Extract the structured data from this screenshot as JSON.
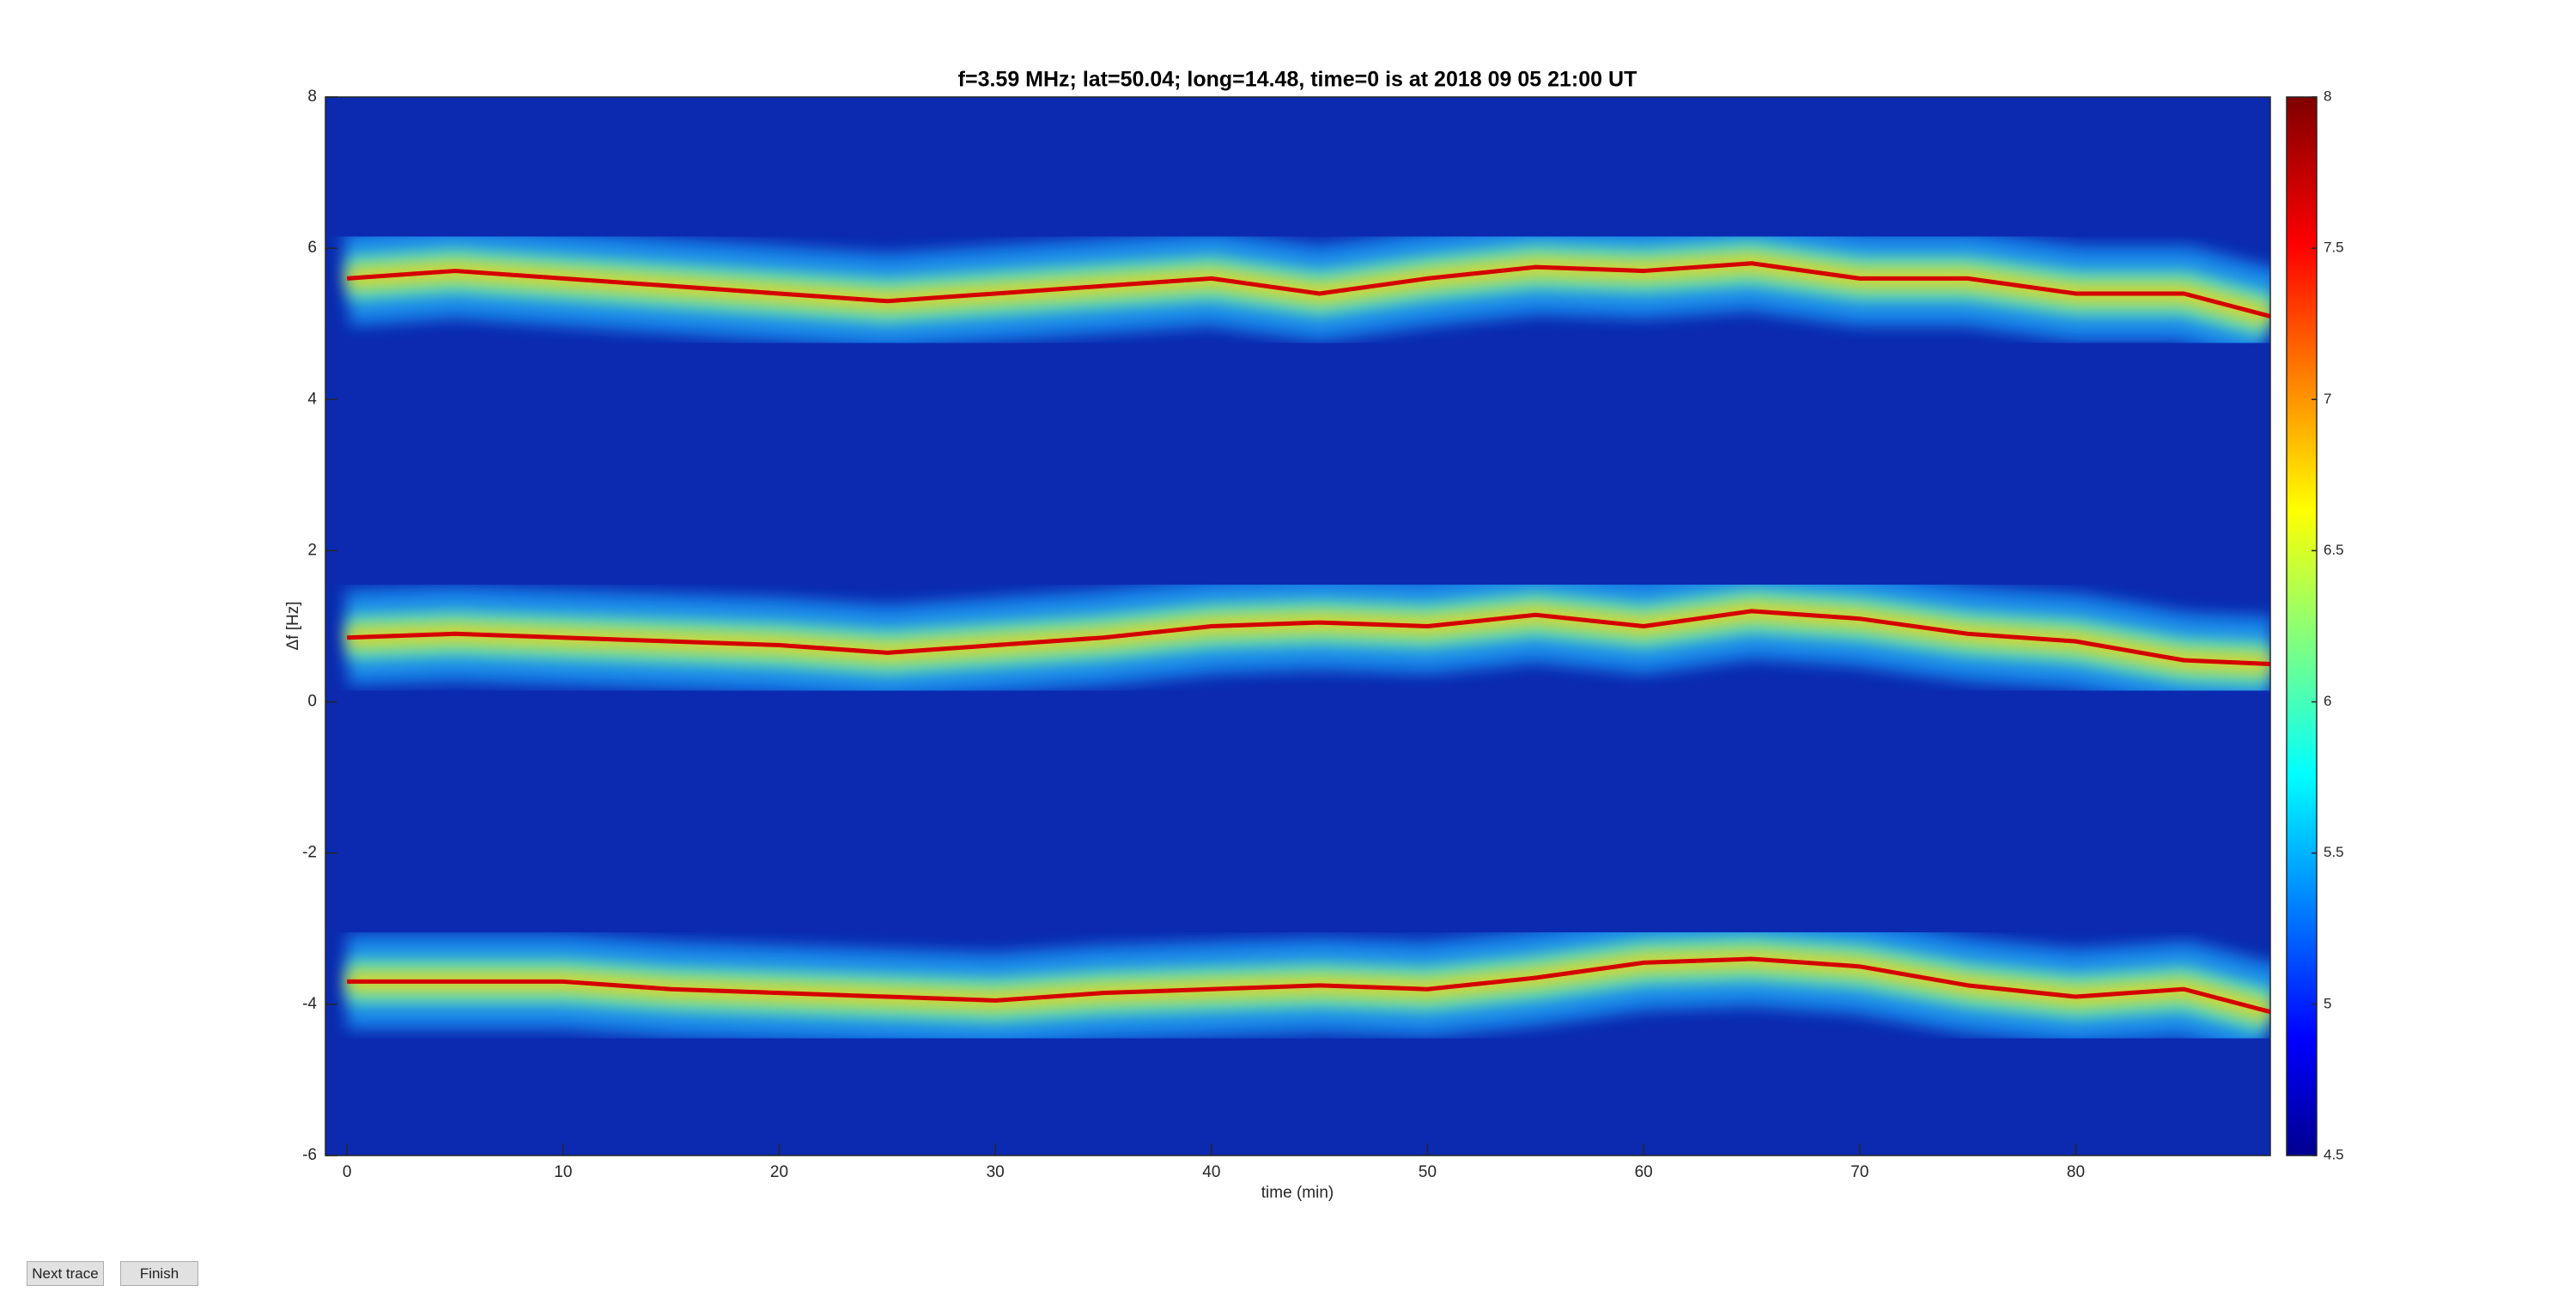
{
  "chart_data": {
    "type": "line",
    "title": "f=3.59 MHz;  lat=50.04; long=14.48, time=0 is at 2018 09 05 21:00 UT",
    "x_label": "time (min)",
    "y_label": "Δf [Hz]",
    "x": [
      0,
      5,
      10,
      15,
      20,
      25,
      30,
      35,
      40,
      45,
      50,
      55,
      60,
      65,
      70,
      75,
      80,
      85,
      89
    ],
    "series": [
      {
        "color": "#d40000",
        "values": [
          5.6,
          5.7,
          5.6,
          5.5,
          5.4,
          5.3,
          5.4,
          5.5,
          5.6,
          5.4,
          5.6,
          5.75,
          5.7,
          5.8,
          5.6,
          5.6,
          5.4,
          5.4,
          5.1
        ]
      },
      {
        "color": "#d40000",
        "values": [
          0.85,
          0.9,
          0.85,
          0.8,
          0.75,
          0.65,
          0.75,
          0.85,
          1.0,
          1.05,
          1.0,
          1.15,
          1.0,
          1.2,
          1.1,
          0.9,
          0.8,
          0.55,
          0.5
        ]
      },
      {
        "color": "#d40000",
        "values": [
          -3.7,
          -3.7,
          -3.7,
          -3.8,
          -3.85,
          -3.9,
          -3.95,
          -3.85,
          -3.8,
          -3.75,
          -3.8,
          -3.65,
          -3.45,
          -3.4,
          -3.5,
          -3.75,
          -3.9,
          -3.8,
          -4.1
        ]
      }
    ],
    "xlim": [
      -1,
      89
    ],
    "xticks": [
      0,
      10,
      20,
      30,
      40,
      50,
      60,
      70,
      80
    ],
    "ylim": [
      -6,
      8
    ],
    "yticks": [
      -6,
      -4,
      -2,
      0,
      2,
      4,
      6,
      8
    ],
    "background": "#0b2ab0",
    "colorbar": {
      "colormap": "jet",
      "clim": [
        4.5,
        8
      ],
      "ticks": [
        4.5,
        5,
        5.5,
        6,
        6.5,
        7,
        7.5,
        8
      ]
    }
  },
  "buttons": [
    "Next trace",
    "Finish"
  ]
}
